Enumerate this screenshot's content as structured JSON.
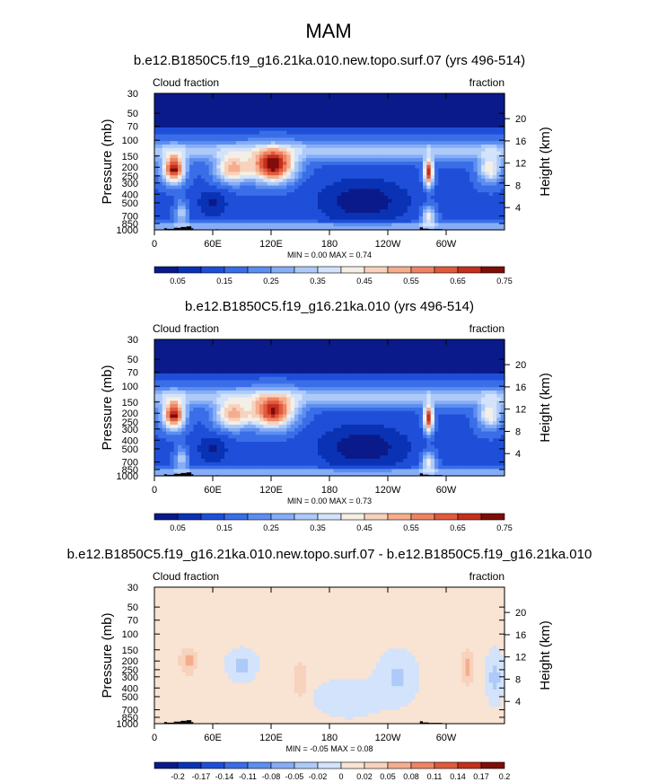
{
  "page": {
    "title": "MAM"
  },
  "colors": {
    "abs": [
      "#0b1a8a",
      "#0a32b4",
      "#1f4fd8",
      "#3a6ee8",
      "#5c8ef0",
      "#86adf5",
      "#aecaf8",
      "#d2e3fb",
      "#f4efe6",
      "#f7d2bd",
      "#f4ad8d",
      "#ee8464",
      "#e05a3e",
      "#c4301d",
      "#7f0d08"
    ],
    "diff": [
      "#0b1a8a",
      "#0a32b4",
      "#1f4fd8",
      "#3a6ee8",
      "#5c8ef0",
      "#86adf5",
      "#aecaf8",
      "#d2e3fb",
      "#f9e3d3",
      "#f7d2bd",
      "#f4ad8d",
      "#ee8464",
      "#e05a3e",
      "#c4301d",
      "#7f0d08"
    ],
    "land": "#000000"
  },
  "chart_data": [
    {
      "type": "contour",
      "title": "b.e12.B1850C5.f19_g16.21ka.010.new.topo.surf.07 (yrs 496-514)",
      "left_label": "Cloud fraction",
      "right_label": "fraction",
      "ylabel": "Pressure (mb)",
      "ylabel_right": "Height (km)",
      "x_ticks": [
        "0",
        "60E",
        "120E",
        "180",
        "120W",
        "60W"
      ],
      "x_tick_lon": [
        0,
        60,
        120,
        180,
        240,
        300
      ],
      "xlim": [
        0,
        360
      ],
      "y_ticks": [
        "30",
        "50",
        "70",
        "100",
        "150",
        "200",
        "250",
        "300",
        "400",
        "500",
        "700",
        "850",
        "1000"
      ],
      "y_tick_p": [
        30,
        50,
        70,
        100,
        150,
        200,
        250,
        300,
        400,
        500,
        700,
        850,
        1000
      ],
      "ylim": [
        1000,
        30
      ],
      "height_ticks": [
        "4",
        "8",
        "12",
        "16",
        "20"
      ],
      "height_km": [
        4,
        8,
        12,
        16,
        20
      ],
      "stats": "MIN =   0.00   MAX =   0.74",
      "min": 0.0,
      "max": 0.74,
      "colorbar": {
        "labels": [
          "0.05",
          "0.15",
          "0.25",
          "0.35",
          "0.45",
          "0.55",
          "0.65",
          "0.75"
        ],
        "levels": [
          0.05,
          0.1,
          0.15,
          0.2,
          0.25,
          0.3,
          0.35,
          0.4,
          0.45,
          0.5,
          0.55,
          0.6,
          0.65,
          0.7
        ]
      }
    },
    {
      "type": "contour",
      "title": "b.e12.B1850C5.f19_g16.21ka.010 (yrs 496-514)",
      "left_label": "Cloud fraction",
      "right_label": "fraction",
      "ylabel": "Pressure (mb)",
      "ylabel_right": "Height (km)",
      "x_ticks": [
        "0",
        "60E",
        "120E",
        "180",
        "120W",
        "60W"
      ],
      "x_tick_lon": [
        0,
        60,
        120,
        180,
        240,
        300
      ],
      "xlim": [
        0,
        360
      ],
      "y_ticks": [
        "30",
        "50",
        "70",
        "100",
        "150",
        "200",
        "250",
        "300",
        "400",
        "500",
        "700",
        "850",
        "1000"
      ],
      "y_tick_p": [
        30,
        50,
        70,
        100,
        150,
        200,
        250,
        300,
        400,
        500,
        700,
        850,
        1000
      ],
      "ylim": [
        1000,
        30
      ],
      "height_ticks": [
        "4",
        "8",
        "12",
        "16",
        "20"
      ],
      "height_km": [
        4,
        8,
        12,
        16,
        20
      ],
      "stats": "MIN =   0.00   MAX =   0.73",
      "min": 0.0,
      "max": 0.73,
      "colorbar": {
        "labels": [
          "0.05",
          "0.15",
          "0.25",
          "0.35",
          "0.45",
          "0.55",
          "0.65",
          "0.75"
        ],
        "levels": [
          0.05,
          0.1,
          0.15,
          0.2,
          0.25,
          0.3,
          0.35,
          0.4,
          0.45,
          0.5,
          0.55,
          0.6,
          0.65,
          0.7
        ]
      }
    },
    {
      "type": "contour",
      "title": "b.e12.B1850C5.f19_g16.21ka.010.new.topo.surf.07 - b.e12.B1850C5.f19_g16.21ka.010",
      "left_label": "Cloud fraction",
      "right_label": "fraction",
      "ylabel": "Pressure (mb)",
      "ylabel_right": "Height (km)",
      "x_ticks": [
        "0",
        "60E",
        "120E",
        "180",
        "120W",
        "60W"
      ],
      "x_tick_lon": [
        0,
        60,
        120,
        180,
        240,
        300
      ],
      "xlim": [
        0,
        360
      ],
      "y_ticks": [
        "30",
        "50",
        "70",
        "100",
        "150",
        "200",
        "250",
        "300",
        "400",
        "500",
        "700",
        "850",
        "1000"
      ],
      "y_tick_p": [
        30,
        50,
        70,
        100,
        150,
        200,
        250,
        300,
        400,
        500,
        700,
        850,
        1000
      ],
      "ylim": [
        1000,
        30
      ],
      "height_ticks": [
        "4",
        "8",
        "12",
        "16",
        "20"
      ],
      "height_km": [
        4,
        8,
        12,
        16,
        20
      ],
      "stats": "MIN =  -0.05   MAX =   0.08",
      "min": -0.05,
      "max": 0.08,
      "colorbar": {
        "labels": [
          "-0.2",
          "-0.17",
          "-0.14",
          "-0.11",
          "-0.08",
          "-0.05",
          "-0.02",
          "0",
          "0.02",
          "0.05",
          "0.08",
          "0.11",
          "0.14",
          "0.17",
          "0.2"
        ],
        "levels": [
          -0.2,
          -0.17,
          -0.14,
          -0.11,
          -0.08,
          -0.05,
          -0.02,
          0,
          0.02,
          0.05,
          0.08,
          0.11,
          0.14,
          0.17,
          0.2
        ]
      }
    }
  ]
}
